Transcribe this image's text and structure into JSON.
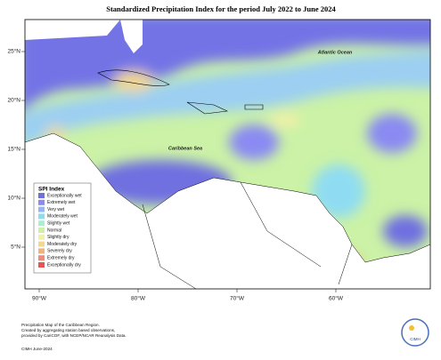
{
  "title": "Standardized Precipitation Index for the period July 2022 to June 2024",
  "map_labels": {
    "ocean": "Atlantic Ocean",
    "sea": "Caribbean Sea"
  },
  "lat_labels": [
    "25°N",
    "20°N",
    "15°N",
    "10°N",
    "5°N"
  ],
  "lon_labels": [
    "90°W",
    "80°W",
    "70°W",
    "60°W"
  ],
  "legend": {
    "title": "SPI Index",
    "items": [
      {
        "label": "Exceptionally wet",
        "color": "#6f6fe0"
      },
      {
        "label": "Extremely wet",
        "color": "#8a8af2"
      },
      {
        "label": "Very wet",
        "color": "#8fb8f4"
      },
      {
        "label": "Moderately wet",
        "color": "#8fdcf2"
      },
      {
        "label": "Slightly wet",
        "color": "#a8f0d0"
      },
      {
        "label": "Normal",
        "color": "#cbf2a6"
      },
      {
        "label": "Slightly dry",
        "color": "#f2f0a8"
      },
      {
        "label": "Moderately dry",
        "color": "#f2d88c"
      },
      {
        "label": "Severely dry",
        "color": "#f2b27e"
      },
      {
        "label": "Extremely dry",
        "color": "#f08a7a"
      },
      {
        "label": "Exceptionally dry",
        "color": "#e85454"
      }
    ]
  },
  "footer": [
    "Precipitation Map of the Caribbean Region.",
    "Created by aggregating station based observations,",
    "provided by CariCOF, with NCEP/NCAR Reanalysis Data."
  ],
  "credit": "CIMH June-2024",
  "logo": "CIMH"
}
